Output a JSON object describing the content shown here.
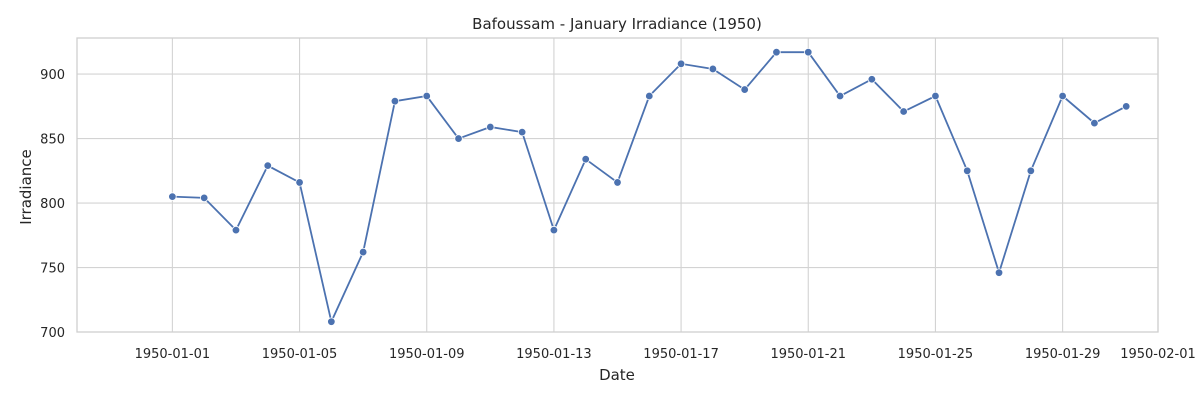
{
  "chart_data": {
    "type": "line",
    "title": "Bafoussam - January Irradiance (1950)",
    "xlabel": "Date",
    "ylabel": "Irradiance",
    "xlim": [
      "1949-12-29",
      "1950-02-01"
    ],
    "ylim": [
      700,
      928
    ],
    "grid": true,
    "x_ticks": [
      "1950-01-01",
      "1950-01-05",
      "1950-01-09",
      "1950-01-13",
      "1950-01-17",
      "1950-01-21",
      "1950-01-25",
      "1950-01-29",
      "1950-02-01"
    ],
    "y_ticks": [
      700,
      750,
      800,
      850,
      900
    ],
    "series_color": "#4c72b0",
    "x": [
      "1950-01-01",
      "1950-01-02",
      "1950-01-03",
      "1950-01-04",
      "1950-01-05",
      "1950-01-06",
      "1950-01-07",
      "1950-01-08",
      "1950-01-09",
      "1950-01-10",
      "1950-01-11",
      "1950-01-12",
      "1950-01-13",
      "1950-01-14",
      "1950-01-15",
      "1950-01-16",
      "1950-01-17",
      "1950-01-18",
      "1950-01-19",
      "1950-01-20",
      "1950-01-21",
      "1950-01-22",
      "1950-01-23",
      "1950-01-24",
      "1950-01-25",
      "1950-01-26",
      "1950-01-27",
      "1950-01-28",
      "1950-01-29",
      "1950-01-30",
      "1950-01-31"
    ],
    "series": [
      {
        "values": [
          805,
          804,
          779,
          829,
          816,
          708,
          762,
          879,
          883,
          850,
          859,
          855,
          779,
          834,
          816,
          883,
          908,
          904,
          888,
          917,
          917,
          883,
          896,
          871,
          883,
          825,
          746,
          825,
          883,
          862,
          875
        ]
      }
    ]
  }
}
